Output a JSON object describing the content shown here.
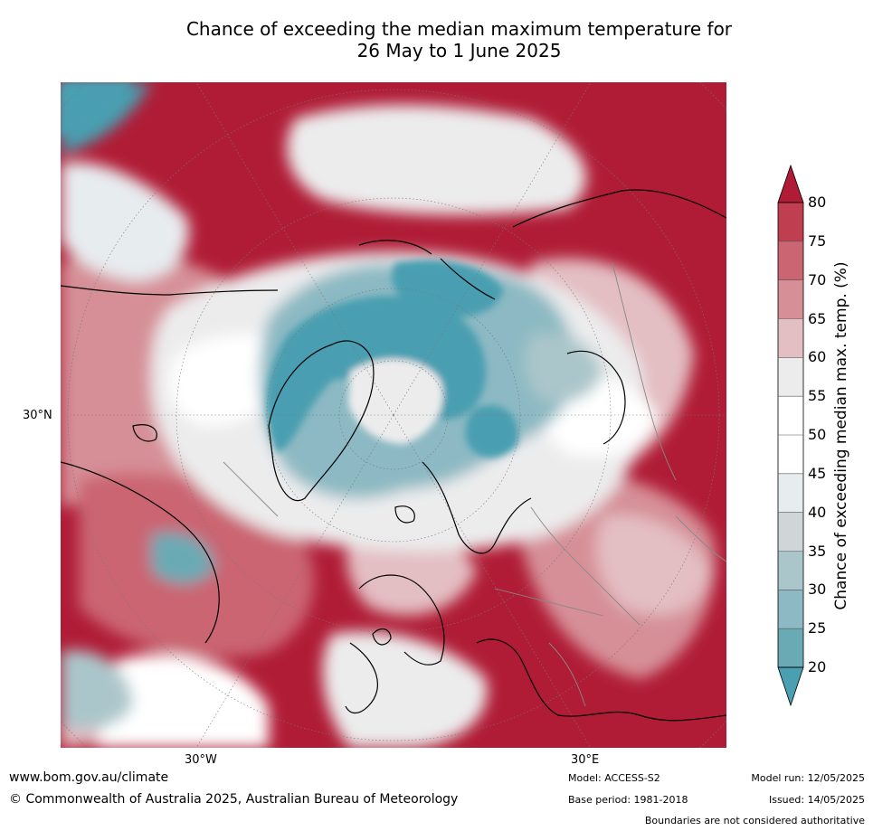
{
  "title_line1": "Chance of exceeding the median maximum temperature for",
  "title_line2": "26 May to 1 June 2025",
  "map": {
    "lat_tick": "30°N",
    "lon_ticks": [
      "30°W",
      "30°E"
    ],
    "colors": {
      "above": "#b01c36",
      "below": "#4a9fb1",
      "neutral": "#ffffff",
      "coast": "#000000",
      "borders": "#888888"
    }
  },
  "colorbar": {
    "title": "Chance of exceeding median max. temp. (%)",
    "ticks": [
      "80",
      "75",
      "70",
      "65",
      "60",
      "55",
      "50",
      "45",
      "40",
      "35",
      "30",
      "25",
      "20"
    ],
    "colors": [
      "#b01c36",
      "#bf3e4f",
      "#cb6572",
      "#d68f97",
      "#e3bec2",
      "#ececed",
      "#ffffff",
      "#ffffff",
      "#e7ecef",
      "#d0d6d8",
      "#abc6ca",
      "#8cb9c3",
      "#6aaab5",
      "#4a9fb1"
    ]
  },
  "footer": {
    "url": "www.bom.gov.au/climate",
    "copyright": "© Commonwealth of Australia 2025, Australian Bureau of Meteorology",
    "model": "Model: ACCESS-S2",
    "base_period": "Base period: 1981-2018",
    "model_run": "Model run: 12/05/2025",
    "issued": "Issued: 14/05/2025",
    "disclaimer": "Boundaries are not considered authoritative"
  }
}
